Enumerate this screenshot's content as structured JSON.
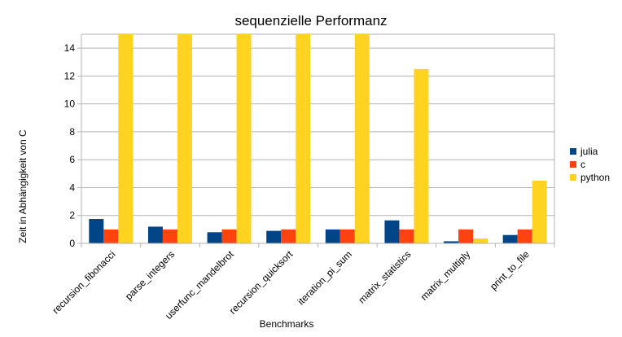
{
  "chart_data": {
    "type": "bar",
    "title": "sequenzielle Performanz",
    "xlabel": "Benchmarks",
    "ylabel": "Zeit in Abhängigkeit von C",
    "ylim": [
      0,
      15
    ],
    "yticks": [
      0,
      2,
      4,
      6,
      8,
      10,
      12,
      14
    ],
    "grid": true,
    "legend_position": "right",
    "categories": [
      "recursion_fibonacci",
      "parse_integers",
      "userfunc_mandelbrot",
      "recursion_quicksort",
      "iteration_pi_sum",
      "matrix_statistics",
      "matrix_multiply",
      "print_to_file"
    ],
    "series": [
      {
        "name": "julia",
        "color": "#004586",
        "values": [
          1.75,
          1.2,
          0.8,
          0.9,
          1.0,
          1.65,
          0.15,
          0.6
        ]
      },
      {
        "name": "c",
        "color": "#ff420e",
        "values": [
          1.0,
          1.0,
          1.0,
          1.0,
          1.0,
          1.0,
          1.0,
          1.0
        ]
      },
      {
        "name": "python",
        "color": "#ffd320",
        "values": [
          15,
          15,
          15,
          15,
          15,
          12.5,
          0.35,
          4.5
        ]
      }
    ]
  }
}
